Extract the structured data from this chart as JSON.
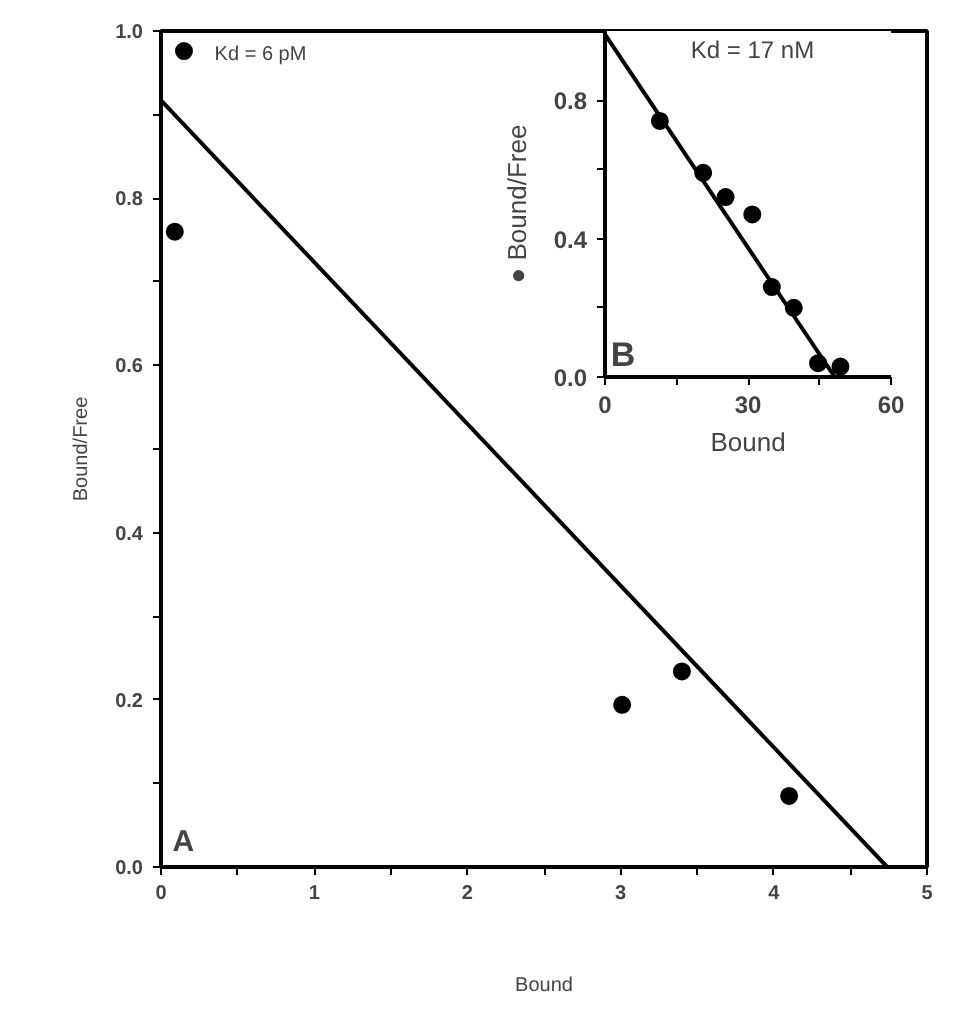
{
  "chart_data": [
    {
      "type": "scatter",
      "xlabel": "Bound",
      "ylabel": "Bound/Free",
      "annotations": [
        "Kd = 6 pM",
        "A"
      ],
      "xlim": [
        0,
        5
      ],
      "ylim": [
        0,
        1.0
      ],
      "xticks": [
        0,
        {
          "value": 0.5,
          "label": null
        },
        1,
        {
          "value": 1.5,
          "label": null
        },
        2,
        {
          "value": 2.5,
          "label": null
        },
        3,
        {
          "value": 3.5,
          "label": null
        },
        4,
        {
          "value": 4.5,
          "label": null
        },
        5
      ],
      "yticks": [
        {
          "value": 0,
          "label": "0.0"
        },
        {
          "value": 0.1,
          "label": null
        },
        0.2,
        {
          "value": 0.3,
          "label": null
        },
        0.4,
        {
          "value": 0.5,
          "label": null
        },
        0.6,
        {
          "value": 0.7,
          "label": null
        },
        0.8,
        {
          "value": 0.9,
          "label": null
        },
        {
          "value": 1,
          "label": "1.0"
        }
      ],
      "grid": false,
      "series": [
        {
          "marker": "circle",
          "color": "#000000",
          "x": [
            0.09,
            0.15,
            3.01,
            3.4,
            4.1
          ],
          "values": [
            0.76,
            0.976,
            0.194,
            0.234,
            0.085
          ]
        },
        {
          "type": "line",
          "color": "#000000",
          "x": [
            0,
            4.74
          ],
          "values": [
            0.917,
            0
          ]
        }
      ]
    },
    {
      "type": "scatter",
      "xlabel": "Bound",
      "ylabel": "● Bound/Free",
      "annotations": [
        "Kd = 17 nM",
        "B"
      ],
      "xlim": [
        0,
        60
      ],
      "ylim": [
        0,
        1.0
      ],
      "xticks": [
        0,
        {
          "value": 15,
          "label": null
        },
        30,
        {
          "value": 45,
          "label": null
        },
        60
      ],
      "yticks": [
        {
          "value": 0,
          "label": "0.0"
        },
        {
          "value": 0.2,
          "label": null
        },
        0.4,
        {
          "value": 0.6,
          "label": null
        },
        0.8
      ],
      "grid": false,
      "series": [
        {
          "marker": "circle",
          "color": "#000000",
          "x": [
            11.5,
            20.6,
            25.3,
            30.9,
            35,
            39.6,
            44.7,
            49.4
          ],
          "values": [
            0.74,
            0.59,
            0.52,
            0.47,
            0.26,
            0.2,
            0.04,
            0.03
          ]
        },
        {
          "type": "line",
          "color": "#000000",
          "x": [
            0,
            48.2
          ],
          "values": [
            0.99,
            0
          ]
        }
      ]
    }
  ]
}
